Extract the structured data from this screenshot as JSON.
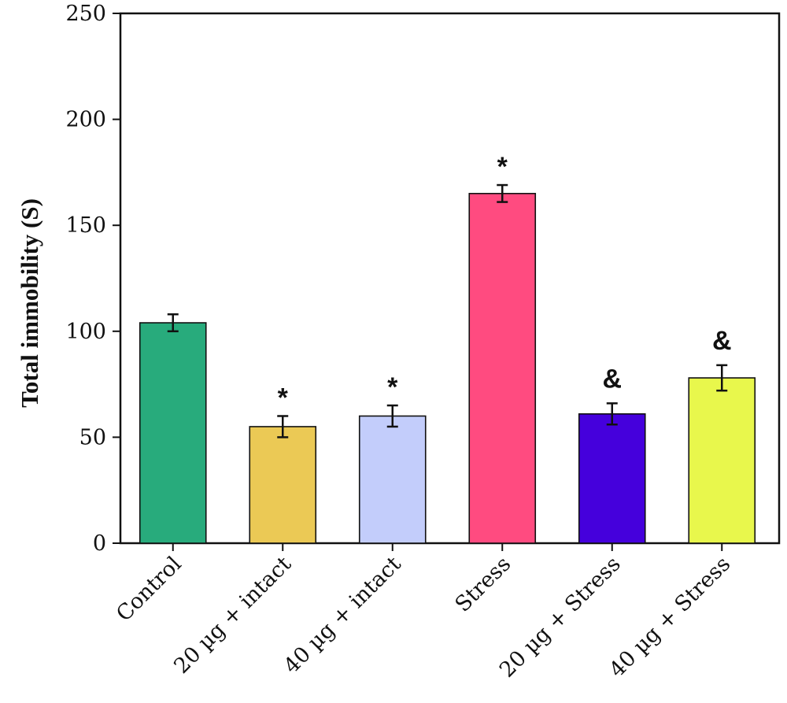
{
  "chart_data": {
    "type": "bar",
    "title": "",
    "xlabel": "",
    "ylabel": "Total immobility (S)",
    "ylim": [
      0,
      250
    ],
    "yticks": [
      0,
      50,
      100,
      150,
      200,
      250
    ],
    "grid": false,
    "legend": "none",
    "categories": [
      "Control",
      "20 µg + intact",
      "40 µg + intact",
      "Stress",
      "20 µg + Stress",
      "40 µg + Stress"
    ],
    "values": [
      104,
      55,
      60,
      165,
      61,
      78
    ],
    "errors": [
      4,
      5,
      5,
      4,
      5,
      6
    ],
    "markers": [
      "",
      "*",
      "*",
      "*",
      "&",
      "&"
    ],
    "colors": [
      "#28ab7c",
      "#ebc955",
      "#c3cdfb",
      "#ff4b80",
      "#4500dc",
      "#e8f74c"
    ]
  }
}
